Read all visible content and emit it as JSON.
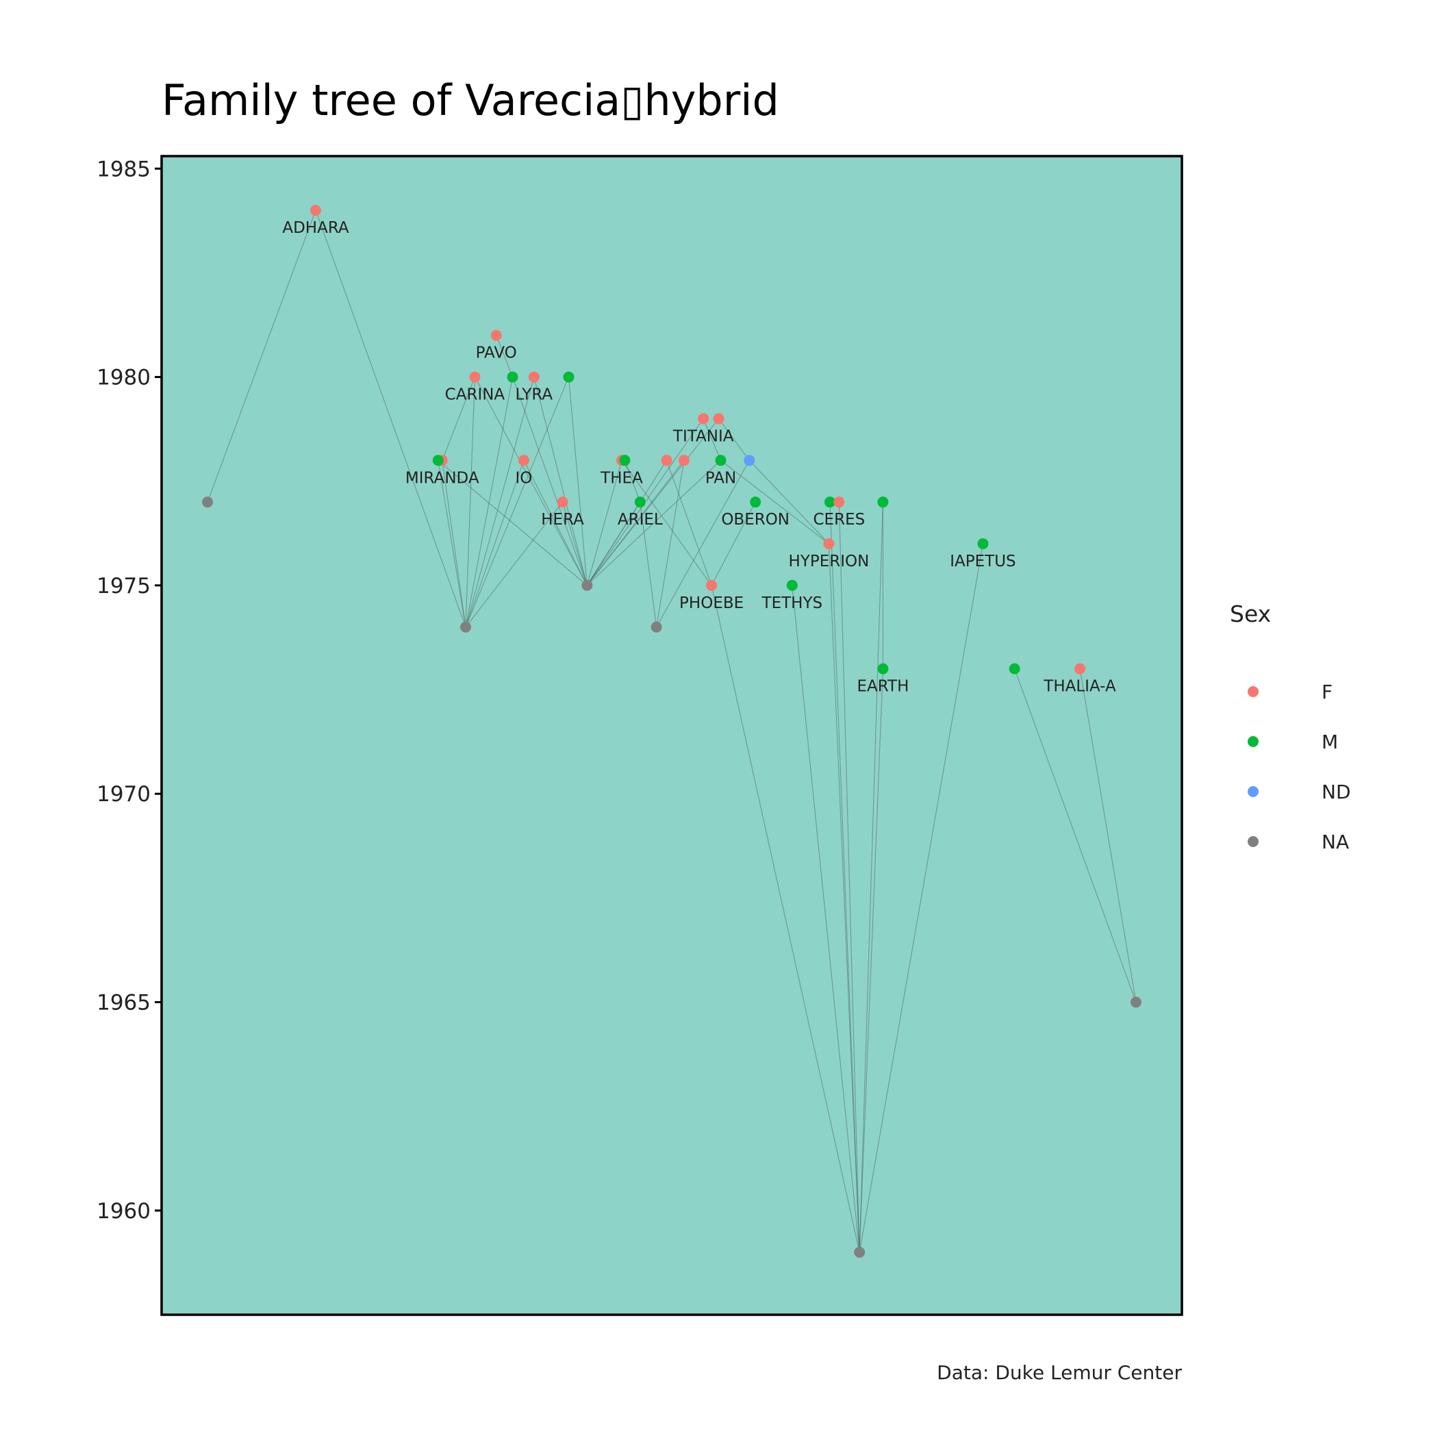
{
  "chart_data": {
    "type": "scatter",
    "title": "Family tree of Varecia▯hybrid",
    "caption": "Data: Duke Lemur Center",
    "xlabel": "",
    "ylabel": "",
    "ylim": [
      1957.5,
      1985.3
    ],
    "xlim": [
      0,
      100
    ],
    "y_ticks": [
      "1960",
      "1965",
      "1970",
      "1975",
      "1980",
      "1985"
    ],
    "panel_color": "#8ED3C7",
    "grid": false,
    "legend": {
      "title": "Sex",
      "placement": "right",
      "entries": [
        {
          "label": "F",
          "color": "#F8766D"
        },
        {
          "label": "M",
          "color": "#00BA38"
        },
        {
          "label": "ND",
          "color": "#619CFF"
        },
        {
          "label": "NA",
          "color": "#808080"
        }
      ]
    },
    "sex_colors": {
      "F": "#F8766D",
      "M": "#00BA38",
      "ND": "#619CFF",
      "NA": "#808080"
    },
    "nodes": [
      {
        "id": "n01",
        "x": 4.5,
        "y": 1977,
        "sex": "NA",
        "label": ""
      },
      {
        "id": "n02",
        "x": 15.1,
        "y": 1984,
        "sex": "F",
        "label": "ADHARA"
      },
      {
        "id": "n03",
        "x": 27.5,
        "y": 1978,
        "sex": "F",
        "label": "MIRANDA"
      },
      {
        "id": "n04",
        "x": 27.1,
        "y": 1978,
        "sex": "M",
        "label": ""
      },
      {
        "id": "n05",
        "x": 30.7,
        "y": 1980,
        "sex": "F",
        "label": "CARINA"
      },
      {
        "id": "n06",
        "x": 32.8,
        "y": 1981,
        "sex": "F",
        "label": "PAVO"
      },
      {
        "id": "n07",
        "x": 34.4,
        "y": 1980,
        "sex": "M",
        "label": ""
      },
      {
        "id": "n08",
        "x": 36.5,
        "y": 1980,
        "sex": "F",
        "label": "LYRA"
      },
      {
        "id": "n09",
        "x": 39.9,
        "y": 1980,
        "sex": "M",
        "label": ""
      },
      {
        "id": "n10",
        "x": 35.5,
        "y": 1978,
        "sex": "F",
        "label": "IO"
      },
      {
        "id": "n11",
        "x": 39.3,
        "y": 1977,
        "sex": "F",
        "label": "HERA"
      },
      {
        "id": "n12",
        "x": 29.8,
        "y": 1974,
        "sex": "NA",
        "label": ""
      },
      {
        "id": "n13",
        "x": 41.7,
        "y": 1975,
        "sex": "NA",
        "label": ""
      },
      {
        "id": "n14",
        "x": 45.1,
        "y": 1978,
        "sex": "F",
        "label": "THEA"
      },
      {
        "id": "n15",
        "x": 45.4,
        "y": 1978,
        "sex": "M",
        "label": ""
      },
      {
        "id": "n16",
        "x": 46.9,
        "y": 1977,
        "sex": "M",
        "label": "ARIEL"
      },
      {
        "id": "n17",
        "x": 49.5,
        "y": 1978,
        "sex": "F",
        "label": ""
      },
      {
        "id": "n18",
        "x": 51.2,
        "y": 1978,
        "sex": "F",
        "label": ""
      },
      {
        "id": "n19",
        "x": 53.1,
        "y": 1979,
        "sex": "F",
        "label": "TITANIA"
      },
      {
        "id": "n20",
        "x": 54.6,
        "y": 1979,
        "sex": "F",
        "label": ""
      },
      {
        "id": "n21",
        "x": 54.8,
        "y": 1978,
        "sex": "M",
        "label": "PAN"
      },
      {
        "id": "n22",
        "x": 57.6,
        "y": 1978,
        "sex": "ND",
        "label": ""
      },
      {
        "id": "n23",
        "x": 48.5,
        "y": 1974,
        "sex": "NA",
        "label": ""
      },
      {
        "id": "n24",
        "x": 53.9,
        "y": 1975,
        "sex": "F",
        "label": "PHOEBE"
      },
      {
        "id": "n25",
        "x": 58.2,
        "y": 1977,
        "sex": "M",
        "label": "OBERON"
      },
      {
        "id": "n26",
        "x": 61.8,
        "y": 1975,
        "sex": "M",
        "label": "TETHYS"
      },
      {
        "id": "n27",
        "x": 65.5,
        "y": 1977,
        "sex": "M",
        "label": ""
      },
      {
        "id": "n28",
        "x": 66.4,
        "y": 1977,
        "sex": "F",
        "label": "CERES"
      },
      {
        "id": "n29",
        "x": 65.4,
        "y": 1976,
        "sex": "F",
        "label": "HYPERION"
      },
      {
        "id": "n30",
        "x": 70.7,
        "y": 1977,
        "sex": "M",
        "label": ""
      },
      {
        "id": "n31",
        "x": 70.7,
        "y": 1973,
        "sex": "M",
        "label": "EARTH"
      },
      {
        "id": "n32",
        "x": 68.4,
        "y": 1959,
        "sex": "NA",
        "label": ""
      },
      {
        "id": "n33",
        "x": 80.5,
        "y": 1976,
        "sex": "M",
        "label": "IAPETUS"
      },
      {
        "id": "n34",
        "x": 83.6,
        "y": 1973,
        "sex": "M",
        "label": ""
      },
      {
        "id": "n35",
        "x": 90.0,
        "y": 1973,
        "sex": "F",
        "label": "THALIA-A"
      },
      {
        "id": "n36",
        "x": 95.5,
        "y": 1965,
        "sex": "NA",
        "label": ""
      }
    ],
    "edges": [
      [
        "n02",
        "n01"
      ],
      [
        "n02",
        "n12"
      ],
      [
        "n03",
        "n05"
      ],
      [
        "n04",
        "n12"
      ],
      [
        "n03",
        "n12"
      ],
      [
        "n04",
        "n13"
      ],
      [
        "n05",
        "n12"
      ],
      [
        "n05",
        "n13"
      ],
      [
        "n06",
        "n07"
      ],
      [
        "n07",
        "n12"
      ],
      [
        "n07",
        "n13"
      ],
      [
        "n08",
        "n12"
      ],
      [
        "n08",
        "n13"
      ],
      [
        "n09",
        "n12"
      ],
      [
        "n09",
        "n13"
      ],
      [
        "n10",
        "n12"
      ],
      [
        "n10",
        "n13"
      ],
      [
        "n11",
        "n12"
      ],
      [
        "n11",
        "n13"
      ],
      [
        "n14",
        "n13"
      ],
      [
        "n15",
        "n16"
      ],
      [
        "n16",
        "n13"
      ],
      [
        "n16",
        "n23"
      ],
      [
        "n17",
        "n13"
      ],
      [
        "n18",
        "n13"
      ],
      [
        "n18",
        "n23"
      ],
      [
        "n19",
        "n13"
      ],
      [
        "n20",
        "n13"
      ],
      [
        "n19",
        "n21"
      ],
      [
        "n20",
        "n22"
      ],
      [
        "n21",
        "n13"
      ],
      [
        "n22",
        "n23"
      ],
      [
        "n22",
        "n29"
      ],
      [
        "n14",
        "n24"
      ],
      [
        "n17",
        "n24"
      ],
      [
        "n21",
        "n29"
      ],
      [
        "n25",
        "n24"
      ],
      [
        "n24",
        "n32"
      ],
      [
        "n26",
        "n32"
      ],
      [
        "n27",
        "n32"
      ],
      [
        "n28",
        "n32"
      ],
      [
        "n29",
        "n32"
      ],
      [
        "n30",
        "n31"
      ],
      [
        "n31",
        "n32"
      ],
      [
        "n30",
        "n32"
      ],
      [
        "n33",
        "n32"
      ],
      [
        "n34",
        "n36"
      ],
      [
        "n35",
        "n36"
      ]
    ]
  }
}
